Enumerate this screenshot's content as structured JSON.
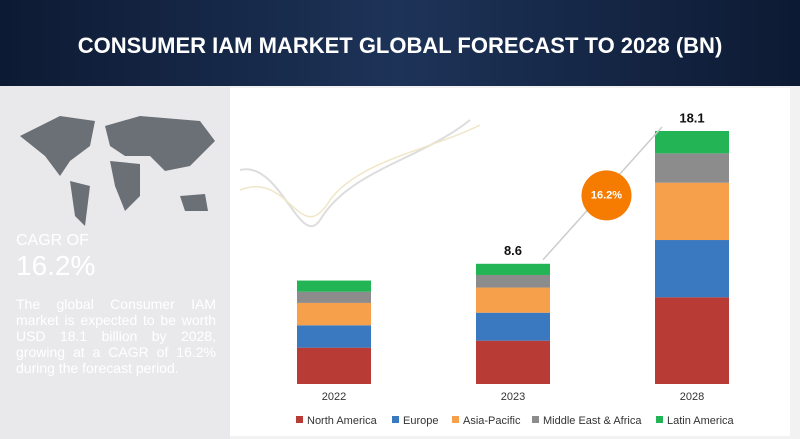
{
  "chart_data": {
    "type": "stacked_bar",
    "title": "CONSUMER IAM MARKET GLOBAL FORECAST TO 2028 (BN)",
    "categories": [
      "2022",
      "2023",
      "2028"
    ],
    "series": [
      {
        "name": "North America",
        "color": "#b83b35",
        "values": [
          2.6,
          3.1,
          6.2
        ]
      },
      {
        "name": "Europe",
        "color": "#3a78bf",
        "values": [
          1.6,
          2.0,
          4.1
        ]
      },
      {
        "name": "Asia-Pacific",
        "color": "#f7a04b",
        "values": [
          1.6,
          1.8,
          4.1
        ]
      },
      {
        "name": "Middle East & Africa",
        "color": "#8c8c8c",
        "values": [
          0.8,
          0.9,
          2.1
        ]
      },
      {
        "name": "Latin America",
        "color": "#22b455",
        "values": [
          0.8,
          0.8,
          1.6
        ]
      }
    ],
    "totals": [
      null,
      8.6,
      18.1
    ],
    "cagr_label": "16.2%",
    "side_panel": {
      "heading": "CAGR OF",
      "cagr": "16.2%",
      "text": "The global Consumer IAM market is expected to be worth USD 18.1 billion by 2028, growing at a CAGR of 16.2% during the forecast period."
    }
  }
}
